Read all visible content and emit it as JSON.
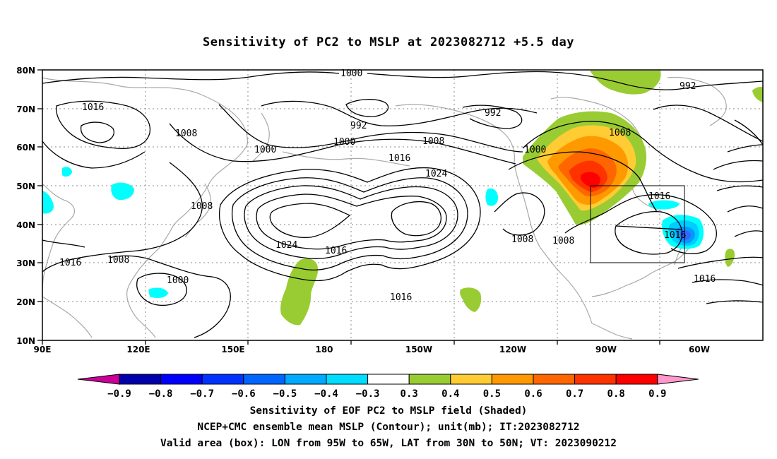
{
  "title": "Sensitivity of PC2 to MSLP at 2023082712 +5.5 day",
  "map": {
    "lon_range": [
      "90E",
      "50W"
    ],
    "lat_range": [
      "10N",
      "80N"
    ],
    "lat_labels": [
      "80N",
      "70N",
      "60N",
      "50N",
      "40N",
      "30N",
      "20N",
      "10N"
    ],
    "lon_labels": [
      "90E",
      "120E",
      "150E",
      "180",
      "150W",
      "120W",
      "90W",
      "60W"
    ],
    "contour_labels": [
      "1000",
      "992",
      "1016",
      "1008",
      "992",
      "1000",
      "1008",
      "1000",
      "1016",
      "1024",
      "1008",
      "1000",
      "992",
      "1008",
      "1024",
      "1016",
      "1008",
      "1008",
      "1016",
      "1016",
      "1016",
      "1016",
      "1000",
      "1008",
      "1016"
    ],
    "valid_box": {
      "lon": [
        "95W",
        "65W"
      ],
      "lat": [
        "30N",
        "50N"
      ]
    },
    "shading_colors": {
      "positive_03": "#99cc33",
      "positive_04": "#ffcc33",
      "positive_05": "#ff9900",
      "positive_06": "#ff6600",
      "positive_07": "#ff3300",
      "positive_08": "#ff0000",
      "negative_03": "#00ffff",
      "negative_04": "#00ccff",
      "negative_05": "#0099ff",
      "negative_06": "#3366ff"
    }
  },
  "colorbar": {
    "labels": [
      "−0.9",
      "−0.8",
      "−0.7",
      "−0.6",
      "−0.5",
      "−0.4",
      "−0.3",
      "0.3",
      "0.4",
      "0.5",
      "0.6",
      "0.7",
      "0.8",
      "0.9"
    ],
    "colors": [
      "#0000aa",
      "#0000ff",
      "#0033ff",
      "#0066ff",
      "#00aaff",
      "#00ddff",
      "#ffffff",
      "#99cc33",
      "#ffcc33",
      "#ff9900",
      "#ff6600",
      "#ff3300",
      "#ff0000"
    ],
    "low_end_color": "#cc0099",
    "high_end_color": "#ff99cc"
  },
  "captions": [
    "Sensitivity of EOF PC2 to MSLP field (Shaded)",
    "NCEP+CMC ensemble mean MSLP (Contour); unit(mb); IT:2023082712",
    "Valid area (box): LON from 95W to 65W, LAT from 30N to 50N; VT: 2023090212"
  ]
}
